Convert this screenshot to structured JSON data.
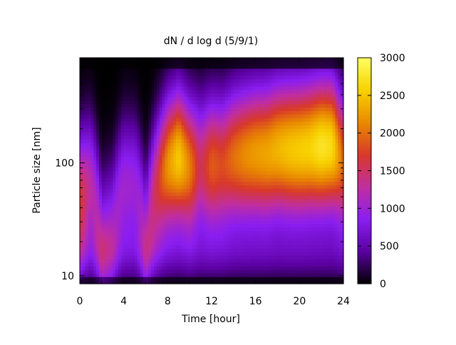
{
  "chart_data": {
    "type": "heatmap",
    "title": "dN / d log d (5/9/1)",
    "xlabel": "Time [hour]",
    "ylabel": "Particle size [nm]",
    "xlim": [
      0,
      24
    ],
    "ylim": [
      8.5,
      850
    ],
    "yscale": "log",
    "x_ticks": [
      0,
      4,
      8,
      12,
      16,
      20,
      24
    ],
    "y_ticks": [
      10,
      100
    ],
    "colorbar": {
      "min": 0,
      "max": 3000,
      "ticks": [
        0,
        500,
        1000,
        1500,
        2000,
        2500,
        3000
      ],
      "colormap": "gnuplot",
      "colors": [
        "#000000",
        "#5a00a0",
        "#8a1ef0",
        "#c02ea0",
        "#d8382a",
        "#e98a00",
        "#f8d000",
        "#ffff60"
      ]
    },
    "background_color": "#ffffff",
    "mode_diameter_nm": {
      "hours": [
        0,
        1,
        2,
        3,
        4,
        5,
        6,
        7,
        8,
        9,
        10,
        11,
        12,
        13,
        14,
        15,
        16,
        17,
        18,
        19,
        20,
        21,
        22,
        23,
        24
      ],
      "values": [
        45,
        60,
        18,
        25,
        60,
        60,
        20,
        60,
        95,
        110,
        90,
        90,
        95,
        95,
        110,
        115,
        120,
        120,
        130,
        130,
        130,
        135,
        140,
        140,
        100
      ]
    },
    "peak_concentration": {
      "hours": [
        0,
        1,
        2,
        3,
        4,
        5,
        6,
        7,
        8,
        9,
        10,
        11,
        12,
        13,
        14,
        15,
        16,
        17,
        18,
        19,
        20,
        21,
        22,
        23,
        24
      ],
      "values": [
        1700,
        1250,
        1100,
        1000,
        1050,
        1000,
        1050,
        1600,
        2200,
        2550,
        2100,
        1500,
        1900,
        1800,
        2000,
        2150,
        2250,
        2300,
        2400,
        2500,
        2550,
        2600,
        2750,
        2650,
        1900
      ]
    }
  }
}
